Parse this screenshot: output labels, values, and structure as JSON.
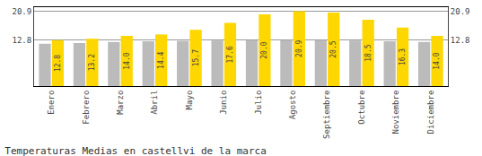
{
  "chart_data": {
    "type": "bar",
    "title": "Temperaturas Medias en castellvi de la marca",
    "categories": [
      "Enero",
      "Febrero",
      "Marzo",
      "Abril",
      "Mayo",
      "Junio",
      "Julio",
      "Agosto",
      "Septiembre",
      "Octubre",
      "Noviembre",
      "Diciembre"
    ],
    "series": [
      {
        "color": "#BBBBBB",
        "values": [
          11.8,
          12.0,
          12.3,
          12.5,
          12.6,
          12.7,
          12.8,
          12.8,
          12.8,
          12.7,
          12.5,
          12.3
        ]
      },
      {
        "color": "#FFD700",
        "values": [
          12.8,
          13.2,
          14.0,
          14.4,
          15.7,
          17.6,
          20.0,
          20.9,
          20.5,
          18.5,
          16.3,
          14.0
        ],
        "value_labels": [
          "12.8",
          "13.2",
          "14.0",
          "14.4",
          "15.7",
          "17.6",
          "20.0",
          "20.9",
          "20.5",
          "18.5",
          "16.3",
          "14.0"
        ],
        "data_labels": true
      }
    ],
    "ylim": [
      0,
      22
    ],
    "yticks": [
      12.8,
      20.9
    ],
    "grid": true
  }
}
